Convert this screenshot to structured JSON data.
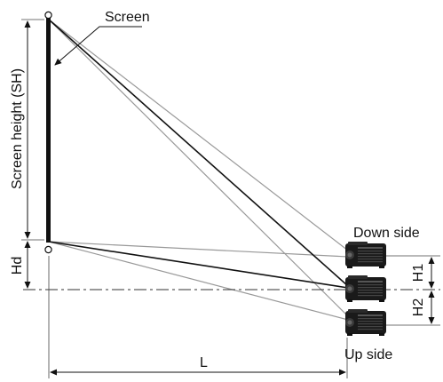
{
  "labels": {
    "screen": "Screen",
    "screen_height": "Screen height (SH)",
    "hd": "Hd",
    "down_side": "Down side",
    "up_side": "Up side",
    "h1": "H1",
    "h2": "H2",
    "l": "L"
  },
  "colors": {
    "line": "#111111",
    "ray_gray": "#999999",
    "projector_body": "#1a1a1a"
  },
  "icons": {
    "projector": "projector-icon",
    "arrow": "arrow-icon"
  }
}
